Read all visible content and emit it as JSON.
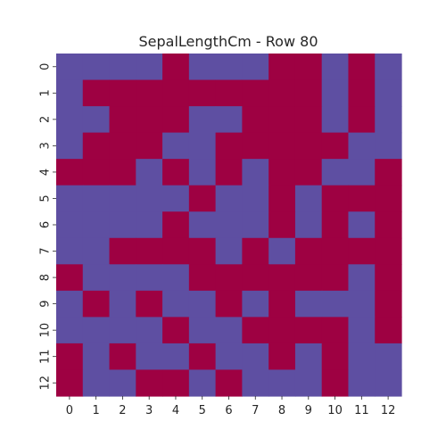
{
  "chart_data": {
    "type": "heatmap",
    "title": "SepalLengthCm - Row 80",
    "xlabel": "",
    "ylabel": "",
    "x_ticks": [
      "0",
      "1",
      "2",
      "3",
      "4",
      "5",
      "6",
      "7",
      "8",
      "9",
      "10",
      "11",
      "12"
    ],
    "y_ticks": [
      "0",
      "1",
      "2",
      "3",
      "4",
      "5",
      "6",
      "7",
      "8",
      "9",
      "10",
      "11",
      "12"
    ],
    "colors": {
      "0": "#5e4fa2",
      "1": "#9e0142"
    },
    "colorbar": false,
    "grid": false,
    "values": [
      [
        0,
        0,
        0,
        0,
        1,
        0,
        0,
        0,
        1,
        1,
        0,
        1,
        0
      ],
      [
        0,
        1,
        1,
        1,
        1,
        1,
        1,
        1,
        1,
        1,
        0,
        1,
        0
      ],
      [
        0,
        0,
        1,
        1,
        1,
        0,
        0,
        1,
        1,
        1,
        0,
        1,
        0
      ],
      [
        0,
        1,
        1,
        1,
        0,
        0,
        1,
        1,
        1,
        1,
        1,
        0,
        0
      ],
      [
        1,
        1,
        1,
        0,
        1,
        0,
        1,
        0,
        1,
        1,
        0,
        0,
        1
      ],
      [
        0,
        0,
        0,
        0,
        0,
        1,
        0,
        0,
        1,
        0,
        1,
        1,
        1
      ],
      [
        0,
        0,
        0,
        0,
        1,
        0,
        0,
        0,
        1,
        0,
        1,
        0,
        1
      ],
      [
        0,
        0,
        1,
        1,
        1,
        1,
        0,
        1,
        0,
        1,
        1,
        1,
        1
      ],
      [
        1,
        0,
        0,
        0,
        0,
        1,
        1,
        1,
        1,
        1,
        1,
        0,
        1
      ],
      [
        0,
        1,
        0,
        1,
        0,
        0,
        1,
        0,
        1,
        0,
        0,
        0,
        1
      ],
      [
        0,
        0,
        0,
        0,
        1,
        0,
        0,
        1,
        1,
        1,
        1,
        0,
        1
      ],
      [
        1,
        0,
        1,
        0,
        0,
        1,
        0,
        0,
        1,
        0,
        1,
        0,
        0
      ],
      [
        1,
        0,
        0,
        1,
        1,
        0,
        1,
        0,
        0,
        0,
        1,
        0,
        0
      ]
    ]
  }
}
